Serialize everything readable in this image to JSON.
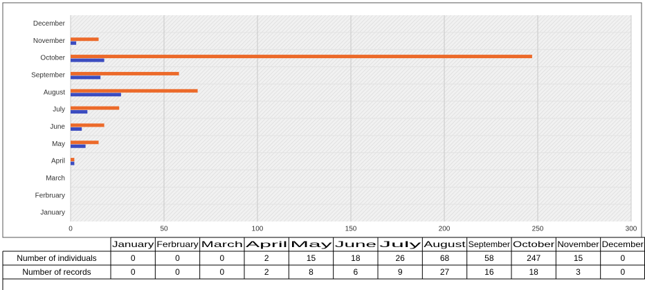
{
  "chart_data": {
    "type": "bar",
    "orientation": "horizontal",
    "categories": [
      "January",
      "Ferbruary",
      "March",
      "April",
      "May",
      "June",
      "July",
      "August",
      "September",
      "October",
      "November",
      "December"
    ],
    "series": [
      {
        "name": "Number of individuals",
        "color": "#ec6a2a",
        "values": [
          0,
          0,
          0,
          2,
          15,
          18,
          26,
          68,
          58,
          247,
          15,
          0
        ]
      },
      {
        "name": "Number of records",
        "color": "#3b4cc0",
        "values": [
          0,
          0,
          0,
          2,
          8,
          6,
          9,
          27,
          16,
          18,
          3,
          0
        ]
      }
    ],
    "xlim": [
      0,
      300
    ],
    "xticks": [
      0,
      50,
      100,
      150,
      200,
      250,
      300
    ],
    "grid": true
  }
}
